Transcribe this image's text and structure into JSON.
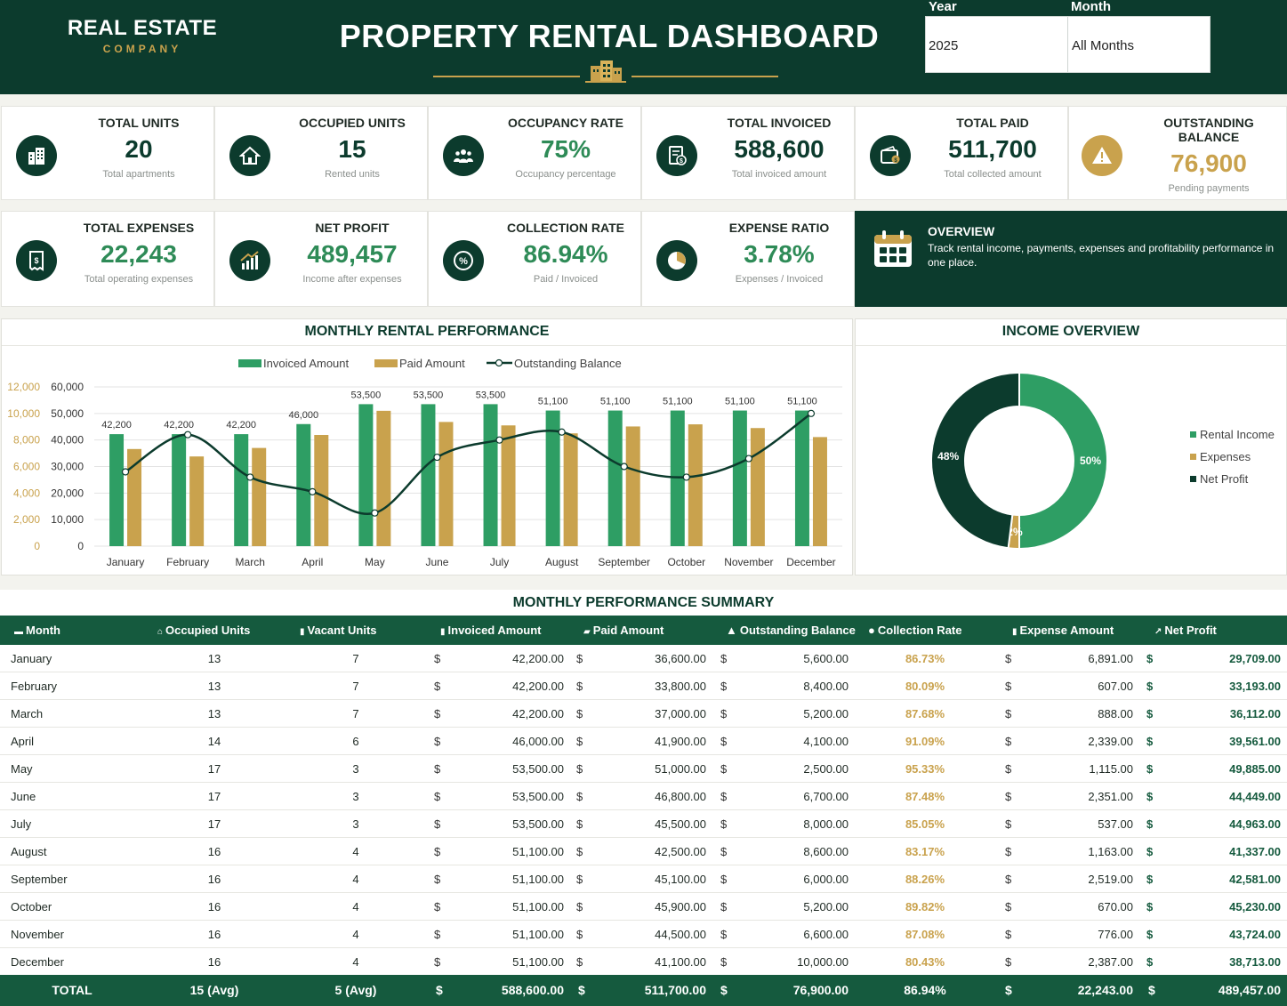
{
  "header": {
    "brand_name": "REAL ESTATE",
    "brand_sub": "COMPANY",
    "title": "PROPERTY RENTAL DASHBOARD",
    "year_label": "Year",
    "year_value": "2025",
    "month_label": "Month",
    "month_value": "All Months"
  },
  "kpis": [
    {
      "title": "TOTAL UNITS",
      "value": "20",
      "sub": "Total apartments",
      "icon": "building-icon"
    },
    {
      "title": "OCCUPIED UNITS",
      "value": "15",
      "sub": "Rented units",
      "icon": "house-icon"
    },
    {
      "title": "OCCUPANCY RATE",
      "value": "75%",
      "sub": "Occupancy percentage",
      "icon": "people-icon"
    },
    {
      "title": "TOTAL INVOICED",
      "value": "588,600",
      "sub": "Total invoiced amount",
      "icon": "invoice-icon"
    },
    {
      "title": "TOTAL PAID",
      "value": "511,700",
      "sub": "Total collected amount",
      "icon": "wallet-icon"
    },
    {
      "title": "OUTSTANDING BALANCE",
      "value": "76,900",
      "sub": "Pending payments",
      "icon": "warning-icon"
    },
    {
      "title": "TOTAL EXPENSES",
      "value": "22,243",
      "sub": "Total operating expenses",
      "icon": "receipt-icon"
    },
    {
      "title": "NET PROFIT",
      "value": "489,457",
      "sub": "Income after expenses",
      "icon": "growth-chart-icon"
    },
    {
      "title": "COLLECTION RATE",
      "value": "86.94%",
      "sub": "Paid / Invoiced",
      "icon": "percent-icon"
    },
    {
      "title": "EXPENSE RATIO",
      "value": "3.78%",
      "sub": "Expenses / Invoiced",
      "icon": "pie-icon"
    }
  ],
  "overview": {
    "title": "OVERVIEW",
    "text": "Track rental income, payments, expenses and profitability performance in one place."
  },
  "colors": {
    "dark_green": "#0c3b2d",
    "green": "#2e9e64",
    "gold": "#c9a24d",
    "table_header": "#155a3e"
  },
  "chart_data": [
    {
      "type": "bar",
      "title": "MONTHLY RENTAL PERFORMANCE",
      "categories": [
        "January",
        "February",
        "March",
        "April",
        "May",
        "June",
        "July",
        "August",
        "September",
        "October",
        "November",
        "December"
      ],
      "series": [
        {
          "name": "Invoiced Amount",
          "type": "bar",
          "axis": "primary",
          "values": [
            42200,
            42200,
            42200,
            46000,
            53500,
            53500,
            53500,
            51100,
            51100,
            51100,
            51100,
            51100
          ],
          "data_labels": [
            "42,200",
            "42,200",
            "42,200",
            "46,000",
            "53,500",
            "53,500",
            "53,500",
            "51,100",
            "51,100",
            "51,100",
            "51,100",
            "51,100"
          ]
        },
        {
          "name": "Paid Amount",
          "type": "bar",
          "axis": "primary",
          "values": [
            36600,
            33800,
            37000,
            41900,
            51000,
            46800,
            45500,
            42500,
            45100,
            45900,
            44500,
            41100
          ]
        },
        {
          "name": "Outstanding Balance",
          "type": "line",
          "axis": "secondary",
          "values": [
            5600,
            8400,
            5200,
            4100,
            2500,
            6700,
            8000,
            8600,
            6000,
            5200,
            6600,
            10000
          ]
        }
      ],
      "y_primary": {
        "ticks": [
          "0",
          "10,000",
          "20,000",
          "30,000",
          "40,000",
          "50,000",
          "60,000"
        ],
        "ylim": [
          0,
          60000
        ]
      },
      "y_secondary": {
        "ticks": [
          "0",
          "2,000",
          "4,000",
          "6,000",
          "8,000",
          "10,000",
          "12,000"
        ],
        "ylim": [
          0,
          12000
        ]
      },
      "legend": "top-center",
      "grid": true
    },
    {
      "type": "pie",
      "title": "INCOME OVERVIEW",
      "slices": [
        {
          "name": "Rental Income",
          "value": 50,
          "label": "50%"
        },
        {
          "name": "Expenses",
          "value": 2,
          "label": "2%"
        },
        {
          "name": "Net Profit",
          "value": 48,
          "label": "48%"
        }
      ],
      "legend": "right"
    }
  ],
  "table": {
    "title": "MONTHLY PERFORMANCE SUMMARY",
    "headers": [
      "Month",
      "Occupied Units",
      "Vacant Units",
      "Invoiced Amount",
      "Paid Amount",
      "Outstanding Balance",
      "Collection Rate",
      "Expense Amount",
      "Net Profit"
    ],
    "currency": "$",
    "rows": [
      [
        "January",
        "13",
        "7",
        "42,200.00",
        "36,600.00",
        "5,600.00",
        "86.73%",
        "6,891.00",
        "29,709.00"
      ],
      [
        "February",
        "13",
        "7",
        "42,200.00",
        "33,800.00",
        "8,400.00",
        "80.09%",
        "607.00",
        "33,193.00"
      ],
      [
        "March",
        "13",
        "7",
        "42,200.00",
        "37,000.00",
        "5,200.00",
        "87.68%",
        "888.00",
        "36,112.00"
      ],
      [
        "April",
        "14",
        "6",
        "46,000.00",
        "41,900.00",
        "4,100.00",
        "91.09%",
        "2,339.00",
        "39,561.00"
      ],
      [
        "May",
        "17",
        "3",
        "53,500.00",
        "51,000.00",
        "2,500.00",
        "95.33%",
        "1,115.00",
        "49,885.00"
      ],
      [
        "June",
        "17",
        "3",
        "53,500.00",
        "46,800.00",
        "6,700.00",
        "87.48%",
        "2,351.00",
        "44,449.00"
      ],
      [
        "July",
        "17",
        "3",
        "53,500.00",
        "45,500.00",
        "8,000.00",
        "85.05%",
        "537.00",
        "44,963.00"
      ],
      [
        "August",
        "16",
        "4",
        "51,100.00",
        "42,500.00",
        "8,600.00",
        "83.17%",
        "1,163.00",
        "41,337.00"
      ],
      [
        "September",
        "16",
        "4",
        "51,100.00",
        "45,100.00",
        "6,000.00",
        "88.26%",
        "2,519.00",
        "42,581.00"
      ],
      [
        "October",
        "16",
        "4",
        "51,100.00",
        "45,900.00",
        "5,200.00",
        "89.82%",
        "670.00",
        "45,230.00"
      ],
      [
        "November",
        "16",
        "4",
        "51,100.00",
        "44,500.00",
        "6,600.00",
        "87.08%",
        "776.00",
        "43,724.00"
      ],
      [
        "December",
        "16",
        "4",
        "51,100.00",
        "41,100.00",
        "10,000.00",
        "80.43%",
        "2,387.00",
        "38,713.00"
      ]
    ],
    "total": [
      "TOTAL",
      "15 (Avg)",
      "5 (Avg)",
      "588,600.00",
      "511,700.00",
      "76,900.00",
      "86.94%",
      "22,243.00",
      "489,457.00"
    ]
  }
}
